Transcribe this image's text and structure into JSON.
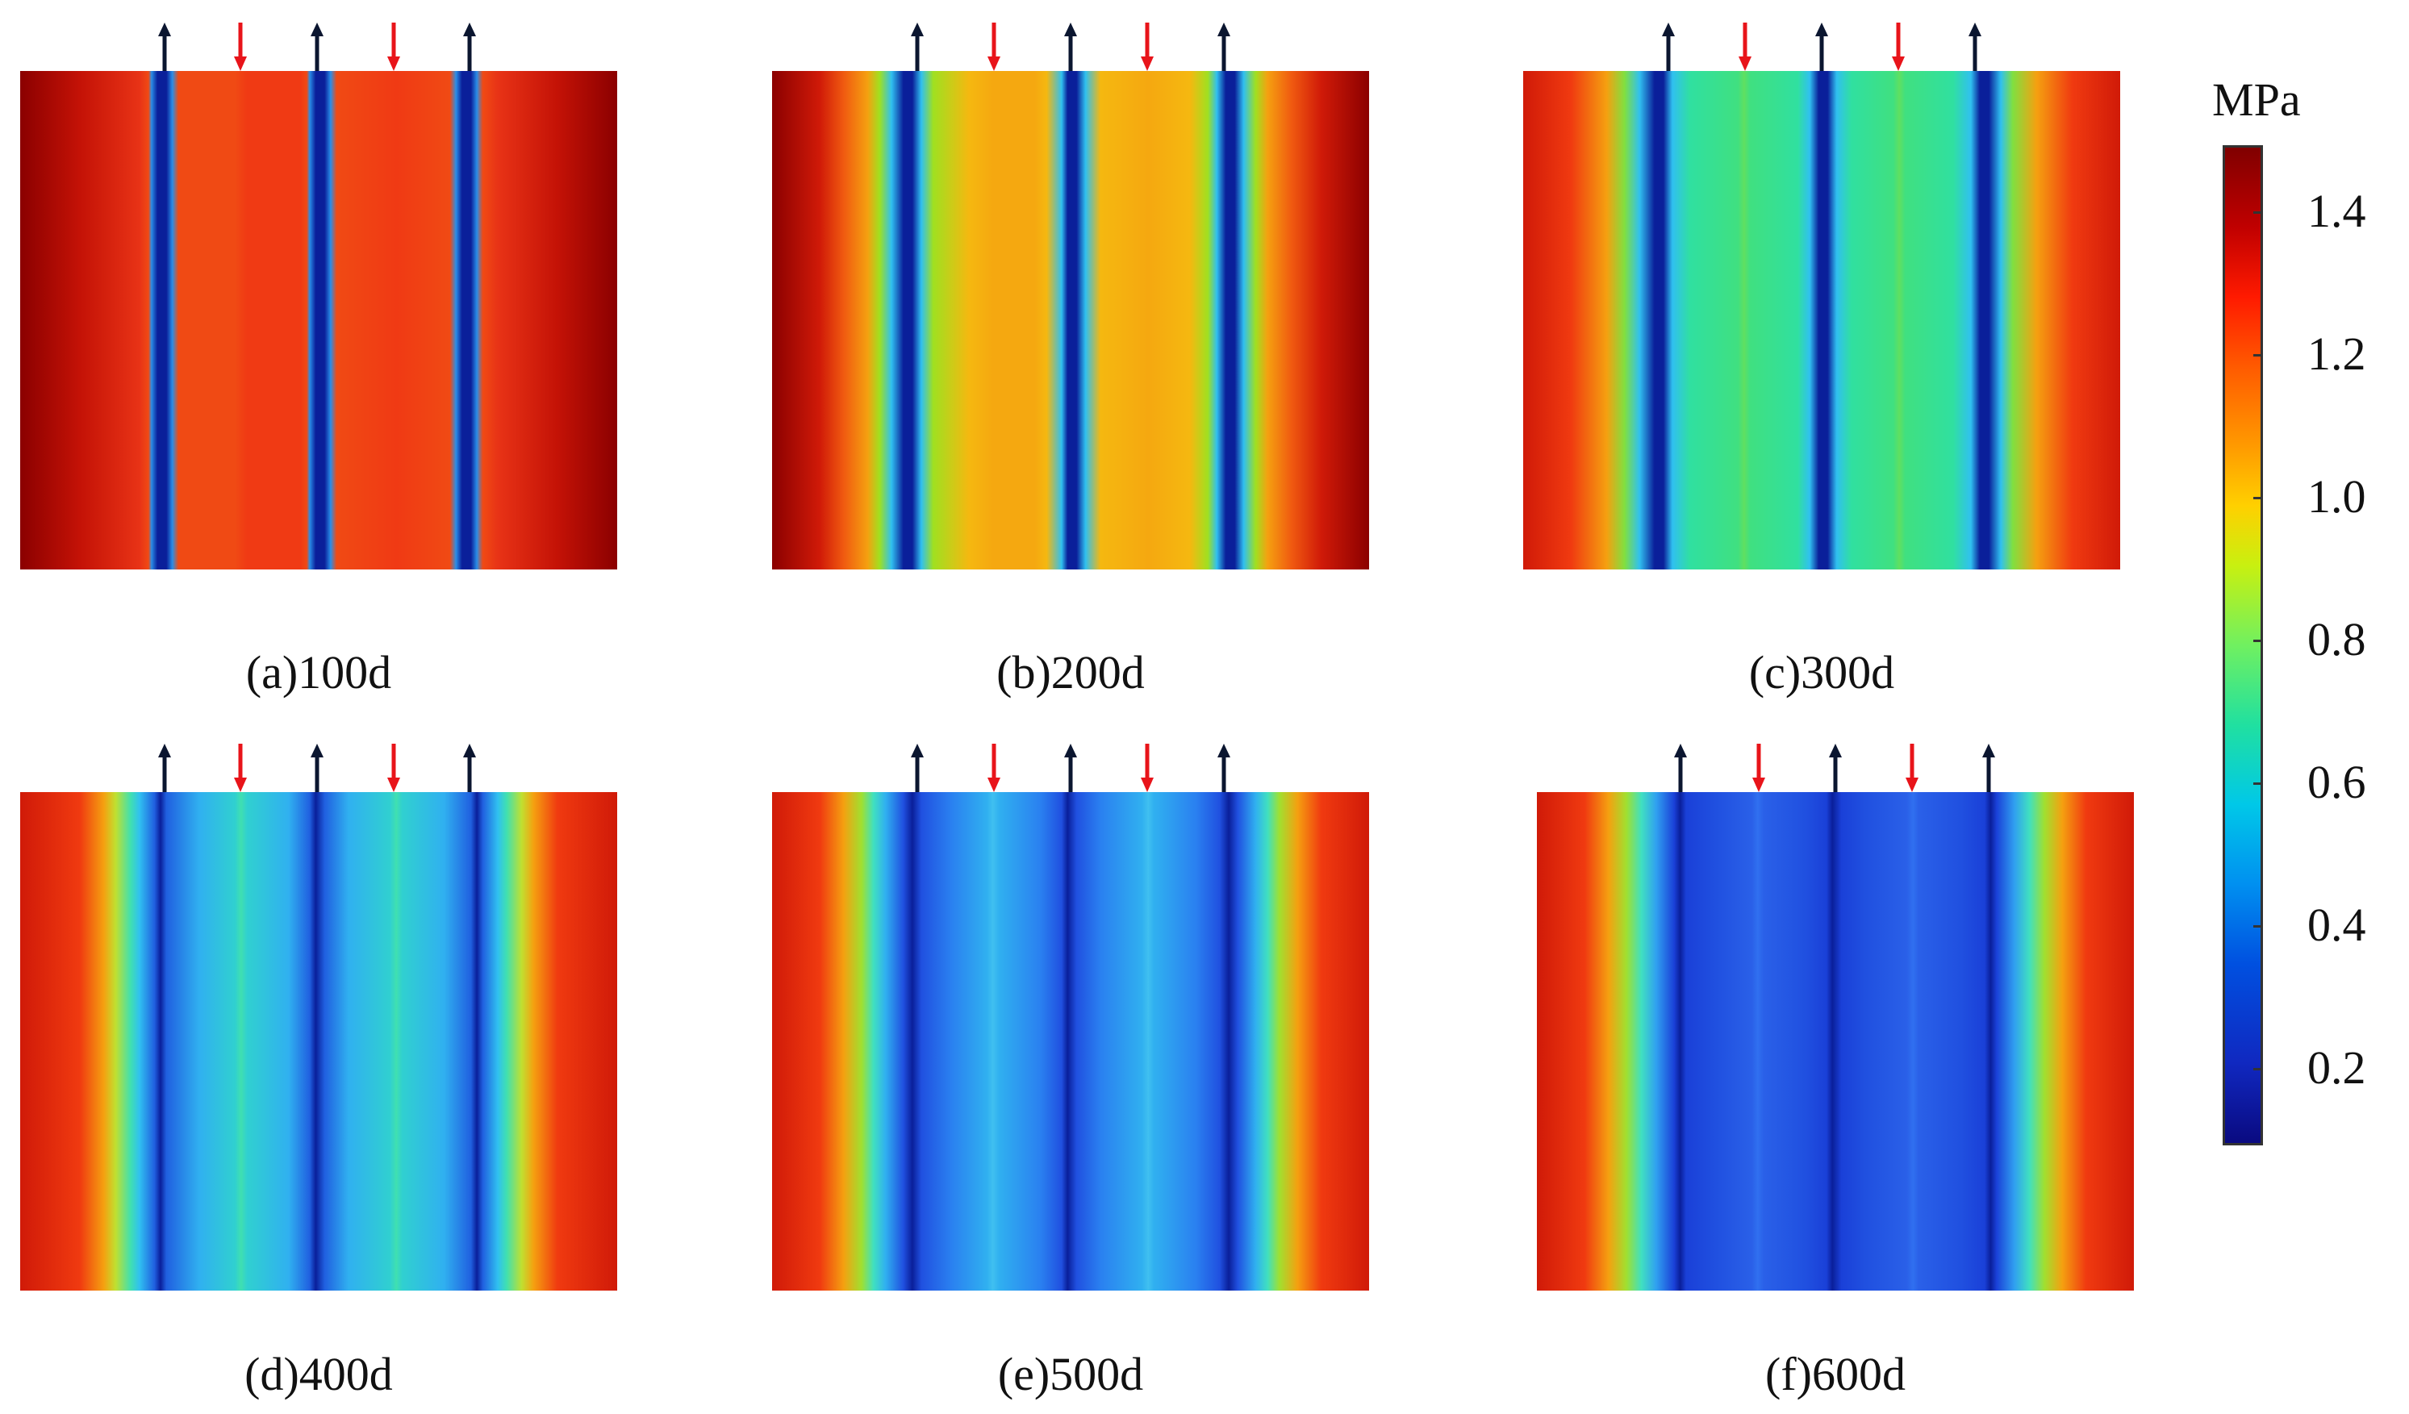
{
  "figure": {
    "unit": "MPa",
    "colorbar": {
      "ticks": [
        "1.4",
        "1.2",
        "1.0",
        "0.8",
        "0.6",
        "0.4",
        "0.2"
      ],
      "tick_values": [
        1.4,
        1.2,
        1.0,
        0.8,
        0.6,
        0.4,
        0.2
      ],
      "range": [
        0.1,
        1.5
      ],
      "colormap": "rainbow (jet)"
    },
    "arrow_colors": {
      "production": "#0b1630",
      "injection": "#e8141a"
    },
    "panels": [
      {
        "id": "a",
        "caption": "(a)100d"
      },
      {
        "id": "b",
        "caption": "(b)200d"
      },
      {
        "id": "c",
        "caption": "(c)300d"
      },
      {
        "id": "d",
        "caption": "(d)400d"
      },
      {
        "id": "e",
        "caption": "(e)500d"
      },
      {
        "id": "f",
        "caption": "(f)600d"
      }
    ]
  }
}
